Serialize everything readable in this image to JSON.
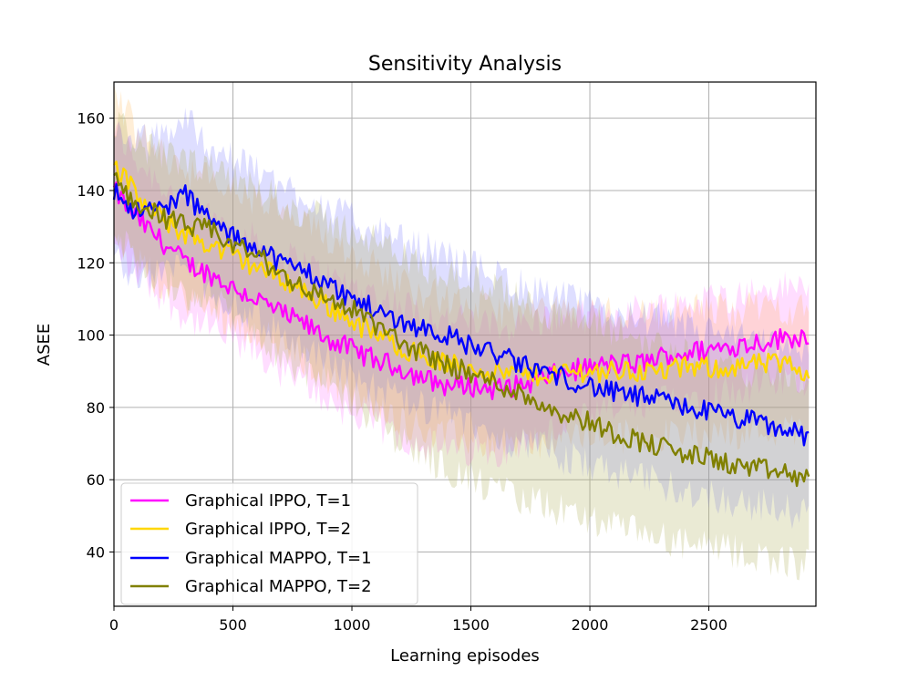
{
  "chart_data": {
    "type": "line",
    "title": "Sensitivity Analysis",
    "xlabel": "Learning episodes",
    "ylabel": "ASEE",
    "xlim": [
      0,
      2950
    ],
    "ylim": [
      25,
      170
    ],
    "xticks": [
      0,
      500,
      1000,
      1500,
      2000,
      2500
    ],
    "yticks": [
      40,
      60,
      80,
      100,
      120,
      140,
      160
    ],
    "xtick_labels": [
      "0",
      "500",
      "1000",
      "1500",
      "2000",
      "2500"
    ],
    "ytick_labels": [
      "40",
      "60",
      "80",
      "100",
      "120",
      "140",
      "160"
    ],
    "grid": true,
    "legend_position": "lower-left",
    "series": [
      {
        "name": "Graphical IPPO, T=1",
        "color": "#ff00ff",
        "band_color": "#ff66ff",
        "band_opacity": 0.22,
        "x": [
          0,
          100,
          200,
          300,
          400,
          500,
          600,
          700,
          800,
          900,
          1000,
          1100,
          1200,
          1300,
          1400,
          1500,
          1600,
          1700,
          1800,
          1900,
          2000,
          2100,
          2200,
          2300,
          2400,
          2500,
          2600,
          2700,
          2800,
          2920
        ],
        "mean": [
          140,
          132,
          126,
          120,
          117,
          113,
          110,
          106,
          103,
          99,
          96,
          93,
          91,
          88,
          86,
          86,
          85,
          86,
          88,
          90,
          91,
          92,
          92,
          94,
          95,
          96,
          97,
          98,
          99,
          100
        ],
        "lower": [
          124,
          117,
          111,
          105,
          102,
          98,
          95,
          90,
          86,
          82,
          78,
          75,
          72,
          70,
          68,
          68,
          68,
          70,
          72,
          75,
          77,
          79,
          80,
          82,
          83,
          84,
          85,
          86,
          87,
          88
        ],
        "upper": [
          157,
          148,
          142,
          136,
          133,
          129,
          126,
          122,
          120,
          116,
          114,
          111,
          109,
          106,
          104,
          104,
          102,
          103,
          104,
          105,
          105,
          106,
          107,
          108,
          109,
          110,
          111,
          112,
          113,
          114
        ]
      },
      {
        "name": "Graphical IPPO, T=2",
        "color": "#ffd700",
        "band_color": "#ffb347",
        "band_opacity": 0.22,
        "x": [
          0,
          100,
          200,
          300,
          400,
          500,
          600,
          700,
          800,
          900,
          1000,
          1100,
          1200,
          1300,
          1400,
          1500,
          1600,
          1700,
          1800,
          1900,
          2000,
          2100,
          2200,
          2300,
          2400,
          2500,
          2600,
          2700,
          2800,
          2920
        ],
        "mean": [
          148,
          138,
          132,
          128,
          125,
          122,
          119,
          116,
          112,
          108,
          104,
          100,
          97,
          94,
          92,
          91,
          90,
          89,
          89,
          90,
          90,
          90,
          90,
          90,
          91,
          91,
          91,
          92,
          92,
          90
        ],
        "lower": [
          130,
          120,
          114,
          110,
          107,
          104,
          101,
          97,
          93,
          88,
          84,
          80,
          77,
          74,
          72,
          71,
          70,
          70,
          70,
          72,
          72,
          72,
          72,
          72,
          73,
          73,
          73,
          74,
          74,
          73
        ],
        "upper": [
          167,
          156,
          150,
          146,
          143,
          140,
          137,
          134,
          130,
          127,
          123,
          119,
          115,
          112,
          110,
          108,
          107,
          106,
          106,
          106,
          106,
          106,
          106,
          106,
          107,
          107,
          107,
          108,
          108,
          106
        ]
      },
      {
        "name": "Graphical MAPPO, T=1",
        "color": "#0000ff",
        "band_color": "#6b6bff",
        "band_opacity": 0.22,
        "x": [
          0,
          100,
          200,
          300,
          400,
          500,
          600,
          700,
          800,
          900,
          1000,
          1100,
          1200,
          1300,
          1400,
          1500,
          1600,
          1700,
          1800,
          1900,
          2000,
          2100,
          2200,
          2300,
          2400,
          2500,
          2600,
          2700,
          2800,
          2920
        ],
        "mean": [
          140,
          134,
          135,
          139,
          132,
          127,
          125,
          120,
          118,
          114,
          110,
          107,
          104,
          102,
          100,
          97,
          95,
          92,
          90,
          88,
          86,
          84,
          83,
          82,
          80,
          79,
          77,
          76,
          74,
          72
        ],
        "lower": [
          122,
          116,
          117,
          120,
          113,
          108,
          105,
          100,
          97,
          93,
          89,
          85,
          82,
          80,
          78,
          75,
          73,
          70,
          68,
          66,
          64,
          62,
          60,
          59,
          57,
          56,
          54,
          53,
          52,
          50
        ],
        "upper": [
          158,
          153,
          155,
          160,
          153,
          148,
          146,
          141,
          139,
          135,
          132,
          129,
          126,
          124,
          122,
          119,
          117,
          114,
          112,
          110,
          108,
          106,
          105,
          104,
          102,
          101,
          99,
          98,
          96,
          95
        ]
      },
      {
        "name": "Graphical MAPPO, T=2",
        "color": "#808000",
        "band_color": "#b5b564",
        "band_opacity": 0.28,
        "x": [
          0,
          100,
          200,
          300,
          400,
          500,
          600,
          700,
          800,
          900,
          1000,
          1100,
          1200,
          1300,
          1400,
          1500,
          1600,
          1700,
          1800,
          1900,
          2000,
          2100,
          2200,
          2300,
          2400,
          2500,
          2600,
          2700,
          2800,
          2920
        ],
        "mean": [
          143,
          136,
          133,
          130,
          129,
          125,
          122,
          117,
          113,
          110,
          107,
          103,
          98,
          95,
          92,
          89,
          87,
          84,
          81,
          78,
          76,
          73,
          71,
          69,
          67,
          66,
          64,
          63,
          62,
          60
        ],
        "lower": [
          128,
          120,
          116,
          112,
          110,
          105,
          101,
          95,
          90,
          86,
          82,
          77,
          71,
          67,
          63,
          60,
          57,
          55,
          53,
          51,
          49,
          47,
          45,
          44,
          42,
          41,
          40,
          39,
          38,
          36
        ],
        "upper": [
          160,
          153,
          150,
          147,
          146,
          143,
          141,
          137,
          134,
          131,
          129,
          126,
          122,
          119,
          117,
          115,
          113,
          110,
          107,
          105,
          103,
          101,
          99,
          97,
          95,
          93,
          91,
          90,
          89,
          87
        ]
      }
    ]
  }
}
